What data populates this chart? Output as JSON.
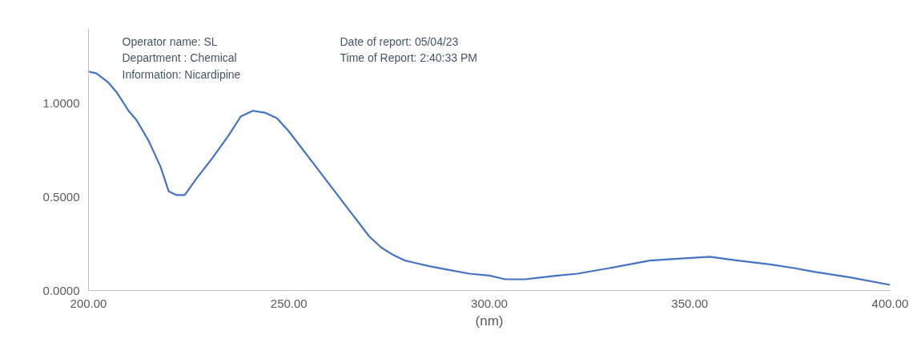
{
  "chart_data": {
    "type": "line",
    "xlabel": "(nm)",
    "annotations": [
      "Operator name: SL",
      "Department : Chemical",
      "Information: Nicardipine",
      "Date of report: 05/04/23",
      "Time of Report: 2:40:33 PM"
    ],
    "xlim": [
      200,
      400
    ],
    "xticks": [
      {
        "value": 200,
        "label": "200.00"
      },
      {
        "value": 250,
        "label": "250.00"
      },
      {
        "value": 300,
        "label": "300.00"
      },
      {
        "value": 350,
        "label": "350.00"
      },
      {
        "value": 400,
        "label": "400.00"
      }
    ],
    "ylim": [
      0,
      1.4
    ],
    "yticks": [
      {
        "value": 0,
        "label": "0.0000"
      },
      {
        "value": 0.5,
        "label": "0.5000"
      },
      {
        "value": 1,
        "label": "1.0000"
      }
    ],
    "grid": false,
    "marker": "none",
    "line_style": "solid",
    "series": [
      {
        "color": "#4472c4",
        "x": [
          200,
          202,
          205,
          207,
          210,
          212,
          215,
          218,
          220,
          222,
          224,
          227,
          231,
          235,
          238,
          241,
          244,
          247,
          250,
          255,
          260,
          265,
          270,
          273,
          276,
          279,
          281,
          285,
          290,
          295,
          300,
          304,
          309,
          313,
          317,
          322,
          330,
          340,
          347,
          355,
          362,
          370,
          376,
          381,
          390,
          400
        ],
        "values": [
          1.17,
          1.16,
          1.11,
          1.06,
          0.96,
          0.91,
          0.8,
          0.66,
          0.53,
          0.51,
          0.51,
          0.6,
          0.71,
          0.83,
          0.93,
          0.96,
          0.95,
          0.92,
          0.85,
          0.71,
          0.57,
          0.43,
          0.29,
          0.23,
          0.19,
          0.16,
          0.15,
          0.13,
          0.11,
          0.09,
          0.08,
          0.06,
          0.06,
          0.07,
          0.08,
          0.09,
          0.12,
          0.16,
          0.17,
          0.18,
          0.16,
          0.14,
          0.12,
          0.1,
          0.07,
          0.03
        ]
      }
    ]
  }
}
